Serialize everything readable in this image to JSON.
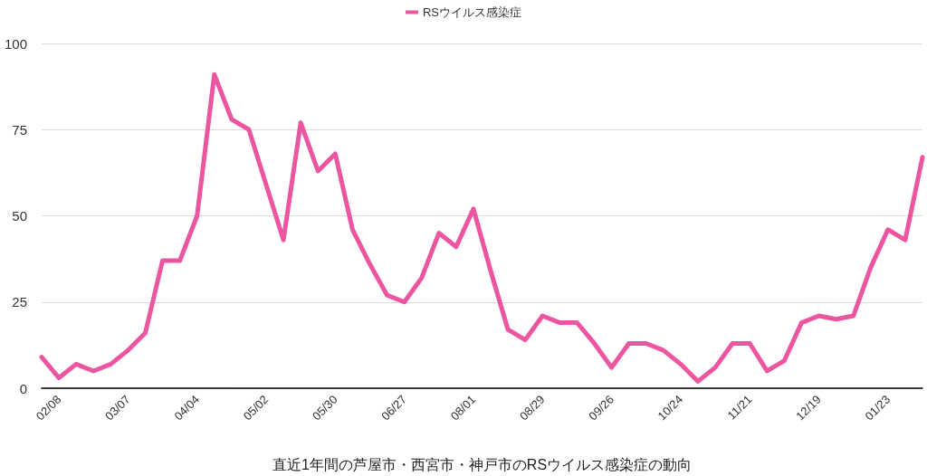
{
  "chart_data": {
    "type": "line",
    "xlabel": "直近1年間の芦屋市・西宮市・神戸市のRSウイルス感染症の動向",
    "categories": [
      null,
      "02/08",
      null,
      null,
      null,
      "03/07",
      null,
      null,
      null,
      "04/04",
      null,
      null,
      null,
      "05/02",
      null,
      null,
      null,
      "05/30",
      null,
      null,
      null,
      "06/27",
      null,
      null,
      null,
      "08/01",
      null,
      null,
      null,
      "08/29",
      null,
      null,
      null,
      "09/26",
      null,
      null,
      null,
      "10/24",
      null,
      null,
      null,
      "11/21",
      null,
      null,
      null,
      "12/19",
      null,
      null,
      null,
      "01/23",
      null,
      null
    ],
    "series": [
      {
        "name": "RSウイルス感染症",
        "color": "#ec559f",
        "values": [
          9,
          3,
          7,
          5,
          7,
          11,
          16,
          37,
          37,
          50,
          91,
          78,
          75,
          59,
          43,
          77,
          63,
          68,
          46,
          36,
          27,
          25,
          32,
          45,
          41,
          52,
          34,
          17,
          14,
          21,
          19,
          19,
          13,
          6,
          13,
          13,
          11,
          7,
          2,
          6,
          13,
          13,
          5,
          8,
          19,
          21,
          20,
          21,
          35,
          46,
          43,
          67
        ]
      }
    ],
    "ylim": [
      0,
      100
    ],
    "yticks": [
      0,
      25,
      50,
      75,
      100
    ],
    "grid": "y",
    "legend": "top",
    "marker": "none",
    "line_style": "solid"
  }
}
